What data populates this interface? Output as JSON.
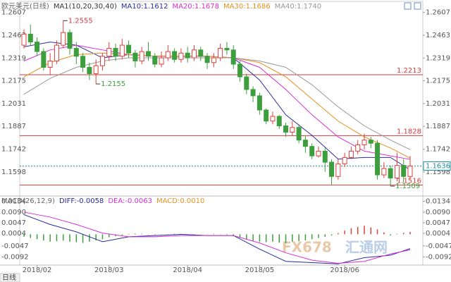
{
  "chart_data": [
    {
      "type": "candlestick",
      "title": "欧元美元(日线)",
      "subtitle": "MA1(10,20,30,40)",
      "up_color": "#e0403c",
      "down_color": "#3d9e3d",
      "ylim": [
        1.15,
        1.265
      ],
      "yticks": [
        1.2607,
        1.2463,
        1.2319,
        1.2175,
        1.2031,
        1.1887,
        1.1742,
        1.1598
      ],
      "candles": [
        [
          1.24,
          1.25,
          1.238,
          1.247
        ],
        [
          1.247,
          1.253,
          1.24,
          1.242
        ],
        [
          1.242,
          1.245,
          1.233,
          1.236
        ],
        [
          1.236,
          1.238,
          1.224,
          1.226
        ],
        [
          1.226,
          1.235,
          1.221,
          1.23
        ],
        [
          1.23,
          1.243,
          1.228,
          1.24
        ],
        [
          1.24,
          1.2555,
          1.238,
          1.248
        ],
        [
          1.248,
          1.25,
          1.234,
          1.238
        ],
        [
          1.238,
          1.242,
          1.228,
          1.233
        ],
        [
          1.233,
          1.235,
          1.223,
          1.226
        ],
        [
          1.226,
          1.229,
          1.218,
          1.222
        ],
        [
          1.222,
          1.231,
          1.2155,
          1.227
        ],
        [
          1.227,
          1.235,
          1.224,
          1.233
        ],
        [
          1.233,
          1.242,
          1.23,
          1.238
        ],
        [
          1.238,
          1.241,
          1.23,
          1.233
        ],
        [
          1.233,
          1.244,
          1.231,
          1.24
        ],
        [
          1.24,
          1.243,
          1.232,
          1.235
        ],
        [
          1.235,
          1.237,
          1.226,
          1.23
        ],
        [
          1.23,
          1.239,
          1.228,
          1.236
        ],
        [
          1.236,
          1.242,
          1.23,
          1.233
        ],
        [
          1.233,
          1.235,
          1.226,
          1.228
        ],
        [
          1.228,
          1.236,
          1.226,
          1.232
        ],
        [
          1.232,
          1.24,
          1.23,
          1.236
        ],
        [
          1.236,
          1.238,
          1.229,
          1.231
        ],
        [
          1.231,
          1.238,
          1.229,
          1.235
        ],
        [
          1.235,
          1.239,
          1.229,
          1.232
        ],
        [
          1.232,
          1.24,
          1.23,
          1.237
        ],
        [
          1.237,
          1.239,
          1.23,
          1.233
        ],
        [
          1.233,
          1.235,
          1.225,
          1.229
        ],
        [
          1.229,
          1.235,
          1.226,
          1.232
        ],
        [
          1.232,
          1.241,
          1.23,
          1.238
        ],
        [
          1.238,
          1.242,
          1.234,
          1.237
        ],
        [
          1.237,
          1.24,
          1.225,
          1.228
        ],
        [
          1.228,
          1.23,
          1.217,
          1.22
        ],
        [
          1.22,
          1.222,
          1.209,
          1.212
        ],
        [
          1.212,
          1.214,
          1.204,
          1.208
        ],
        [
          1.208,
          1.21,
          1.196,
          1.199
        ],
        [
          1.199,
          1.2,
          1.19,
          1.192
        ],
        [
          1.192,
          1.198,
          1.19,
          1.195
        ],
        [
          1.195,
          1.196,
          1.187,
          1.189
        ],
        [
          1.189,
          1.191,
          1.182,
          1.185
        ],
        [
          1.185,
          1.192,
          1.183,
          1.188
        ],
        [
          1.188,
          1.19,
          1.178,
          1.18
        ],
        [
          1.18,
          1.183,
          1.172,
          1.176
        ],
        [
          1.176,
          1.178,
          1.168,
          1.17
        ],
        [
          1.17,
          1.176,
          1.169,
          1.173
        ],
        [
          1.173,
          1.175,
          1.16,
          1.166
        ],
        [
          1.166,
          1.168,
          1.152,
          1.157
        ],
        [
          1.157,
          1.168,
          1.155,
          1.165
        ],
        [
          1.165,
          1.172,
          1.163,
          1.169
        ],
        [
          1.169,
          1.176,
          1.168,
          1.173
        ],
        [
          1.173,
          1.18,
          1.171,
          1.177
        ],
        [
          1.177,
          1.184,
          1.174,
          1.18
        ],
        [
          1.18,
          1.182,
          1.175,
          1.178
        ],
        [
          1.178,
          1.18,
          1.155,
          1.158
        ],
        [
          1.158,
          1.166,
          1.156,
          1.162
        ],
        [
          1.162,
          1.164,
          1.1509,
          1.156
        ],
        [
          1.156,
          1.172,
          1.154,
          1.164
        ],
        [
          1.164,
          1.168,
          1.153,
          1.157
        ],
        [
          1.157,
          1.17,
          1.156,
          1.1636
        ]
      ],
      "series": [
        {
          "name": "MA10:1.1612",
          "color": "#2b2b9e",
          "x": [
            0,
            4,
            8,
            12,
            16,
            20,
            24,
            28,
            32,
            36,
            40,
            44,
            48,
            52,
            56,
            59
          ],
          "values": [
            1.239,
            1.242,
            1.24,
            1.232,
            1.234,
            1.233,
            1.233,
            1.233,
            1.232,
            1.218,
            1.196,
            1.183,
            1.168,
            1.169,
            1.169,
            1.1612
          ]
        },
        {
          "name": "MA20:1.1678",
          "color": "#d62fd6",
          "x": [
            0,
            4,
            8,
            12,
            16,
            20,
            24,
            28,
            32,
            36,
            40,
            44,
            48,
            52,
            56,
            59
          ],
          "values": [
            1.23,
            1.237,
            1.24,
            1.237,
            1.234,
            1.233,
            1.233,
            1.233,
            1.232,
            1.226,
            1.212,
            1.196,
            1.182,
            1.173,
            1.17,
            1.1678
          ]
        },
        {
          "name": "MA30:1.1686",
          "color": "#e8901e",
          "x": [
            0,
            4,
            8,
            12,
            16,
            20,
            24,
            28,
            32,
            36,
            40,
            44,
            48,
            52,
            56,
            59
          ],
          "values": [
            1.22,
            1.229,
            1.234,
            1.235,
            1.234,
            1.233,
            1.233,
            1.233,
            1.232,
            1.229,
            1.22,
            1.206,
            1.192,
            1.182,
            1.175,
            1.1686
          ]
        },
        {
          "name": "MA40:1.1740",
          "color": "#999999",
          "x": [
            0,
            4,
            8,
            12,
            16,
            20,
            24,
            28,
            32,
            36,
            40,
            44,
            48,
            52,
            56,
            59
          ],
          "values": [
            1.209,
            1.219,
            1.226,
            1.23,
            1.232,
            1.232,
            1.232,
            1.232,
            1.232,
            1.23,
            1.226,
            1.215,
            1.201,
            1.189,
            1.18,
            1.174
          ]
        }
      ],
      "levels": [
        {
          "value": 1.2213,
          "color": "#d33b3b"
        },
        {
          "value": 1.1828,
          "color": "#d33b3b"
        },
        {
          "value": 1.1516,
          "color": "#d33b3b"
        }
      ],
      "current": {
        "value": 1.1636,
        "color": "#1f8fa0"
      },
      "annotations": [
        {
          "value": 1.2555,
          "index": 6
        },
        {
          "value": 1.2155,
          "index": 11
        },
        {
          "value": 1.1509,
          "index": 56
        }
      ]
    },
    {
      "type": "macd",
      "title": "MACD(26,12,9)",
      "ylim": [
        -0.0125,
        0.015
      ],
      "yticks": [
        0.0134,
        {
          "value": 0.009,
          "label": "0.0090"
        },
        0.0047,
        0.0004,
        -0.0047,
        -0.0092
      ],
      "series": [
        {
          "name": "DIFF:-0.0058",
          "color": "#2b2b9e",
          "x": [
            0,
            4,
            8,
            12,
            16,
            20,
            24,
            28,
            32,
            36,
            40,
            44,
            48,
            52,
            56,
            59
          ],
          "values": [
            0.008,
            0.004,
            0.001,
            -0.003,
            -0.001,
            -0.0005,
            0.0,
            -0.0005,
            -0.0005,
            -0.006,
            -0.011,
            -0.0115,
            -0.012,
            -0.0095,
            -0.0085,
            -0.0058
          ]
        },
        {
          "name": "DEA:-0.0063",
          "color": "#d62fd6",
          "x": [
            0,
            4,
            8,
            12,
            16,
            20,
            24,
            28,
            32,
            36,
            40,
            44,
            48,
            52,
            56,
            59
          ],
          "values": [
            0.009,
            0.007,
            0.004,
            0.0005,
            -0.001,
            -0.001,
            -0.0005,
            -0.0005,
            -0.0005,
            -0.0035,
            -0.0075,
            -0.0105,
            -0.0118,
            -0.011,
            -0.008,
            -0.0063
          ]
        }
      ],
      "histogram": {
        "name": "MACD:0.0010",
        "up_color": "#e0403c",
        "down_color": "#3d9e3d",
        "values": [
          -0.001,
          -0.0015,
          -0.002,
          -0.0025,
          -0.003,
          -0.0028,
          -0.0025,
          -0.003,
          -0.0032,
          -0.0035,
          -0.003,
          -0.0025,
          -0.002,
          -0.0012,
          -0.0008,
          -0.0004,
          0.0002,
          0.0003,
          0.0002,
          0.0001,
          -0.0002,
          -0.0001,
          0.0001,
          0.0002,
          0.0001,
          -0.0001,
          -0.0002,
          -0.0001,
          0.0001,
          0.0002,
          0.0001,
          -0.0002,
          -0.0008,
          -0.0015,
          -0.0022,
          -0.0028,
          -0.003,
          -0.0032,
          -0.003,
          -0.0034,
          -0.0036,
          -0.003,
          -0.0028,
          -0.0025,
          -0.002,
          -0.0015,
          -0.001,
          -0.0005,
          0.0005,
          0.0015,
          0.0025,
          0.003,
          0.0035,
          0.0028,
          0.002,
          0.0008,
          -0.0005,
          0.0002,
          0.0006,
          0.001
        ]
      },
      "xticks": [
        {
          "value": 2,
          "label": "2018/02"
        },
        {
          "value": 13,
          "label": "2018/03"
        },
        {
          "value": 25,
          "label": "2018/04"
        },
        {
          "value": 36,
          "label": "2018/05"
        },
        {
          "value": 49,
          "label": "2018/06"
        }
      ]
    }
  ],
  "tab": "日线",
  "watermark": [
    "FX678",
    "汇通网"
  ]
}
